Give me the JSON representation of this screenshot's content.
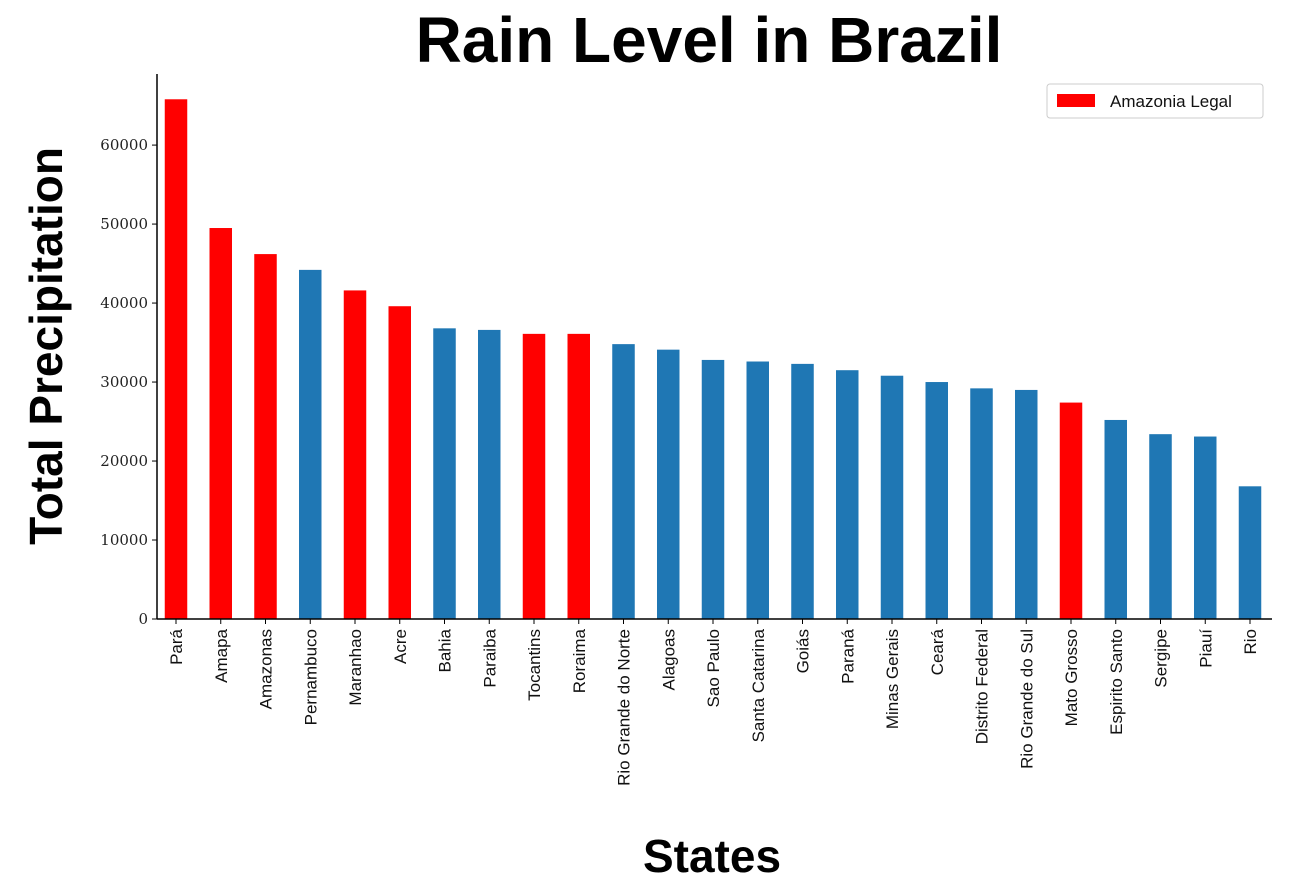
{
  "chart_data": {
    "type": "bar",
    "title": "Rain Level in Brazil",
    "xlabel": "States",
    "ylabel": "Total Precipitation",
    "ylim": [
      0,
      69000
    ],
    "yticks": [
      "0",
      "10000",
      "20000",
      "30000",
      "40000",
      "50000",
      "60000"
    ],
    "ytick_values": [
      0,
      10000,
      20000,
      30000,
      40000,
      50000,
      60000
    ],
    "categories": [
      "Pará",
      "Amapa",
      "Amazonas",
      "Pernambuco",
      "Maranhao",
      "Acre",
      "Bahia",
      "Paraiba",
      "Tocantins",
      "Roraima",
      "Rio Grande do Norte",
      "Alagoas",
      "Sao Paulo",
      "Santa Catarina",
      "Goiás",
      "Paraná",
      "Minas Gerais",
      "Ceará",
      "Distrito Federal",
      "Rio Grande do Sul",
      "Mato Grosso",
      "Espirito Santo",
      "Sergipe",
      "Piauí",
      "Rio"
    ],
    "values": [
      65800,
      49500,
      46200,
      44200,
      41600,
      39600,
      36800,
      36600,
      36100,
      36100,
      34800,
      34100,
      32800,
      32600,
      32300,
      31500,
      30800,
      30000,
      29200,
      29000,
      27400,
      25200,
      23400,
      23100,
      16800
    ],
    "amazonia_legal": [
      true,
      true,
      true,
      false,
      true,
      true,
      false,
      false,
      true,
      true,
      false,
      false,
      false,
      false,
      false,
      false,
      false,
      false,
      false,
      false,
      true,
      false,
      false,
      false,
      false
    ],
    "legend": [
      {
        "label": "Amazonia Legal",
        "color": "#ff0000"
      }
    ],
    "legend_position": "top-right",
    "colors": {
      "highlight": "#ff0000",
      "default": "#1f77b4"
    },
    "grid": false
  }
}
